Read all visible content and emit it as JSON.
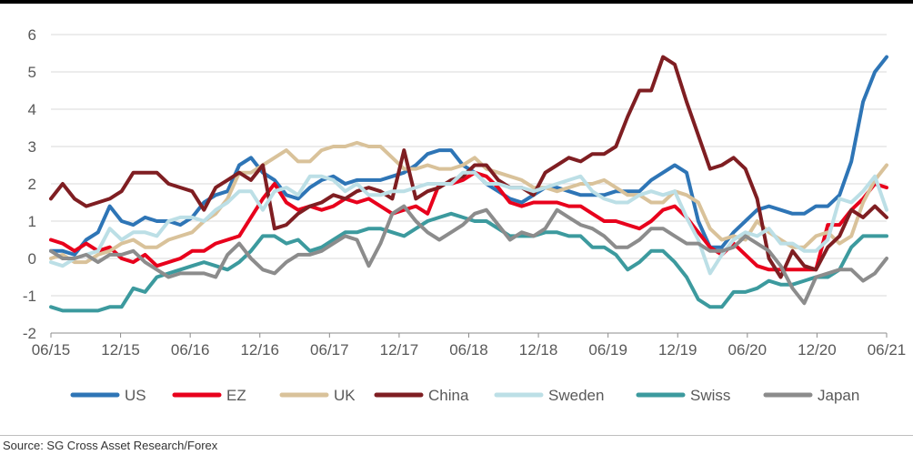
{
  "chart_data": {
    "type": "line",
    "title": "",
    "xlabel": "",
    "ylabel": "",
    "ylim": [
      -2,
      6
    ],
    "yticks": [
      -2,
      -1,
      0,
      1,
      2,
      3,
      4,
      5,
      6
    ],
    "xticks": [
      "06/15",
      "12/15",
      "06/16",
      "12/16",
      "06/17",
      "12/17",
      "06/18",
      "12/18",
      "06/19",
      "12/19",
      "06/20",
      "12/20",
      "06/21"
    ],
    "grid": "horizontal",
    "legend": "bottom",
    "x_start": "06/15",
    "x_end": "06/21",
    "series": [
      {
        "name": "US",
        "color": "#2E75B6",
        "values": [
          0.2,
          0.2,
          0.1,
          0.5,
          0.7,
          1.4,
          1.0,
          0.9,
          1.1,
          1.0,
          1.0,
          0.9,
          1.1,
          1.5,
          1.7,
          1.8,
          2.5,
          2.7,
          2.3,
          2.1,
          1.7,
          1.6,
          1.9,
          2.1,
          2.2,
          2.0,
          2.1,
          2.1,
          2.1,
          2.2,
          2.3,
          2.5,
          2.8,
          2.9,
          2.9,
          2.5,
          2.3,
          2.0,
          1.8,
          1.6,
          1.5,
          1.7,
          1.9,
          1.9,
          1.8,
          1.7,
          1.7,
          1.7,
          1.8,
          1.8,
          1.8,
          2.1,
          2.3,
          2.5,
          2.3,
          1.0,
          0.3,
          0.3,
          0.7,
          1.0,
          1.3,
          1.4,
          1.3,
          1.2,
          1.2,
          1.4,
          1.4,
          1.7,
          2.6,
          4.2,
          5.0,
          5.4
        ]
      },
      {
        "name": "EZ",
        "color": "#E8001C",
        "values": [
          0.5,
          0.4,
          0.2,
          0.4,
          0.2,
          0.3,
          0.0,
          -0.1,
          0.1,
          -0.2,
          -0.1,
          0.0,
          0.2,
          0.2,
          0.4,
          0.5,
          0.6,
          1.1,
          1.6,
          2.0,
          1.5,
          1.3,
          1.4,
          1.3,
          1.4,
          1.6,
          1.5,
          1.6,
          1.4,
          1.2,
          1.3,
          1.4,
          1.2,
          2.0,
          2.0,
          2.1,
          2.3,
          2.2,
          1.9,
          1.5,
          1.4,
          1.5,
          1.5,
          1.5,
          1.4,
          1.4,
          1.2,
          1.0,
          1.0,
          0.9,
          0.8,
          1.0,
          1.3,
          1.4,
          1.1,
          0.7,
          0.3,
          0.1,
          0.4,
          0.1,
          -0.2,
          -0.3,
          -0.3,
          -0.3,
          -0.3,
          -0.3,
          0.9,
          0.9,
          1.3,
          1.6,
          2.0,
          1.9
        ]
      },
      {
        "name": "UK",
        "color": "#D9C29A",
        "values": [
          0.0,
          0.1,
          -0.1,
          -0.1,
          0.1,
          0.2,
          0.4,
          0.5,
          0.3,
          0.3,
          0.5,
          0.6,
          0.7,
          1.0,
          1.2,
          1.6,
          2.3,
          2.3,
          2.5,
          2.7,
          2.9,
          2.6,
          2.6,
          2.9,
          3.0,
          3.0,
          3.1,
          3.0,
          3.0,
          2.7,
          2.4,
          2.4,
          2.5,
          2.4,
          2.4,
          2.5,
          2.7,
          2.4,
          2.3,
          2.2,
          2.1,
          1.9,
          1.9,
          1.8,
          1.9,
          2.0,
          2.0,
          2.1,
          1.9,
          1.7,
          1.7,
          1.5,
          1.5,
          1.8,
          1.7,
          1.5,
          0.8,
          0.5,
          0.6,
          0.5,
          1.0,
          0.7,
          0.5,
          0.3,
          0.3,
          0.6,
          0.7,
          0.4,
          0.6,
          1.5,
          2.1,
          2.5
        ]
      },
      {
        "name": "China",
        "color": "#7F1E22",
        "values": [
          1.6,
          2.0,
          1.6,
          1.4,
          1.5,
          1.6,
          1.8,
          2.3,
          2.3,
          2.3,
          2.0,
          1.9,
          1.8,
          1.3,
          1.9,
          2.1,
          2.3,
          2.1,
          2.5,
          0.8,
          0.9,
          1.2,
          1.4,
          1.5,
          1.7,
          1.6,
          1.8,
          1.9,
          1.8,
          1.6,
          2.9,
          1.6,
          1.8,
          1.9,
          2.1,
          2.2,
          2.5,
          2.5,
          2.1,
          1.9,
          1.9,
          1.7,
          2.3,
          2.5,
          2.7,
          2.6,
          2.8,
          2.8,
          3.0,
          3.8,
          4.5,
          4.5,
          5.4,
          5.2,
          4.2,
          3.3,
          2.4,
          2.5,
          2.7,
          2.4,
          1.6,
          0.0,
          -0.5,
          0.2,
          -0.2,
          -0.3,
          0.3,
          0.6,
          1.3,
          1.1,
          1.4,
          1.1
        ]
      },
      {
        "name": "Sweden",
        "color": "#BCDFE6",
        "values": [
          -0.1,
          -0.2,
          0.0,
          0.1,
          0.2,
          0.8,
          0.5,
          0.7,
          0.7,
          0.6,
          1.0,
          1.1,
          1.1,
          1.0,
          1.3,
          1.5,
          1.8,
          1.8,
          1.3,
          1.8,
          1.9,
          1.7,
          2.2,
          2.2,
          2.1,
          1.8,
          2.0,
          1.7,
          1.7,
          1.8,
          1.8,
          1.9,
          2.0,
          2.0,
          2.0,
          2.3,
          2.3,
          2.0,
          2.0,
          1.9,
          1.9,
          1.8,
          1.9,
          2.0,
          2.1,
          2.2,
          1.8,
          1.6,
          1.5,
          1.5,
          1.7,
          1.8,
          1.7,
          1.8,
          1.1,
          0.5,
          -0.4,
          0.1,
          0.5,
          0.7,
          0.6,
          0.8,
          0.4,
          0.4,
          0.2,
          0.2,
          0.5,
          1.6,
          1.5,
          1.8,
          2.2,
          1.3
        ]
      },
      {
        "name": "Swiss",
        "color": "#3C9A9E",
        "values": [
          -1.3,
          -1.4,
          -1.4,
          -1.4,
          -1.4,
          -1.3,
          -1.3,
          -0.8,
          -0.9,
          -0.5,
          -0.4,
          -0.3,
          -0.2,
          -0.1,
          -0.2,
          -0.3,
          -0.1,
          0.2,
          0.6,
          0.6,
          0.4,
          0.5,
          0.2,
          0.3,
          0.5,
          0.7,
          0.7,
          0.8,
          0.8,
          0.7,
          0.6,
          0.8,
          1.0,
          1.1,
          1.2,
          1.1,
          1.0,
          1.0,
          0.8,
          0.6,
          0.6,
          0.6,
          0.7,
          0.7,
          0.6,
          0.6,
          0.3,
          0.3,
          0.1,
          -0.3,
          -0.1,
          0.2,
          0.2,
          -0.1,
          -0.5,
          -1.1,
          -1.3,
          -1.3,
          -0.9,
          -0.9,
          -0.8,
          -0.6,
          -0.7,
          -0.7,
          -0.6,
          -0.5,
          -0.5,
          -0.3,
          0.3,
          0.6,
          0.6,
          0.6
        ]
      },
      {
        "name": "Japan",
        "color": "#8C8C8C",
        "values": [
          0.2,
          0.0,
          0.0,
          0.1,
          -0.1,
          0.1,
          0.1,
          0.2,
          -0.1,
          -0.3,
          -0.5,
          -0.4,
          -0.4,
          -0.4,
          -0.5,
          0.1,
          0.4,
          0.0,
          -0.3,
          -0.4,
          -0.1,
          0.1,
          0.1,
          0.2,
          0.4,
          0.6,
          0.5,
          -0.2,
          0.4,
          1.2,
          1.4,
          1.0,
          0.7,
          0.5,
          0.7,
          0.9,
          1.2,
          1.3,
          0.9,
          0.5,
          0.7,
          0.6,
          0.8,
          1.3,
          1.1,
          0.9,
          0.8,
          0.6,
          0.3,
          0.3,
          0.5,
          0.8,
          0.8,
          0.6,
          0.4,
          0.4,
          0.2,
          0.2,
          0.3,
          0.6,
          0.4,
          0.2,
          -0.2,
          -0.8,
          -1.2,
          -0.5,
          -0.4,
          -0.3,
          -0.3,
          -0.6,
          -0.4,
          0.0
        ]
      }
    ]
  },
  "source": "Source: SG Cross Asset Research/Forex"
}
